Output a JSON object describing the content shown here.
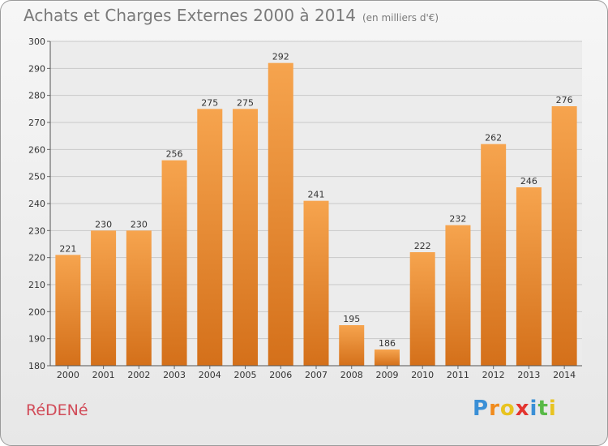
{
  "header": {
    "title": "Achats et Charges Externes 2000 à 2014",
    "unit": "(en milliers d'€)"
  },
  "commune": "RéDENé",
  "logo": {
    "letters": [
      "P",
      "r",
      "o",
      "x",
      "i",
      "t",
      "i"
    ],
    "colors": [
      "#3a8fd6",
      "#f08b1d",
      "#e8c320",
      "#e3342f",
      "#3a8fd6",
      "#58b947",
      "#e8c320"
    ]
  },
  "chart_data": {
    "type": "bar",
    "categories": [
      "2000",
      "2001",
      "2002",
      "2003",
      "2004",
      "2005",
      "2006",
      "2007",
      "2008",
      "2009",
      "2010",
      "2011",
      "2012",
      "2013",
      "2014"
    ],
    "values": [
      221,
      230,
      230,
      256,
      275,
      275,
      292,
      241,
      195,
      186,
      222,
      232,
      262,
      246,
      276
    ],
    "ylim": [
      180,
      300
    ],
    "yticks": [
      180,
      190,
      200,
      210,
      220,
      230,
      240,
      250,
      260,
      270,
      280,
      290,
      300
    ],
    "grid": true,
    "bar_color_top": "#f6a44e",
    "bar_color_bottom": "#d4701a"
  }
}
